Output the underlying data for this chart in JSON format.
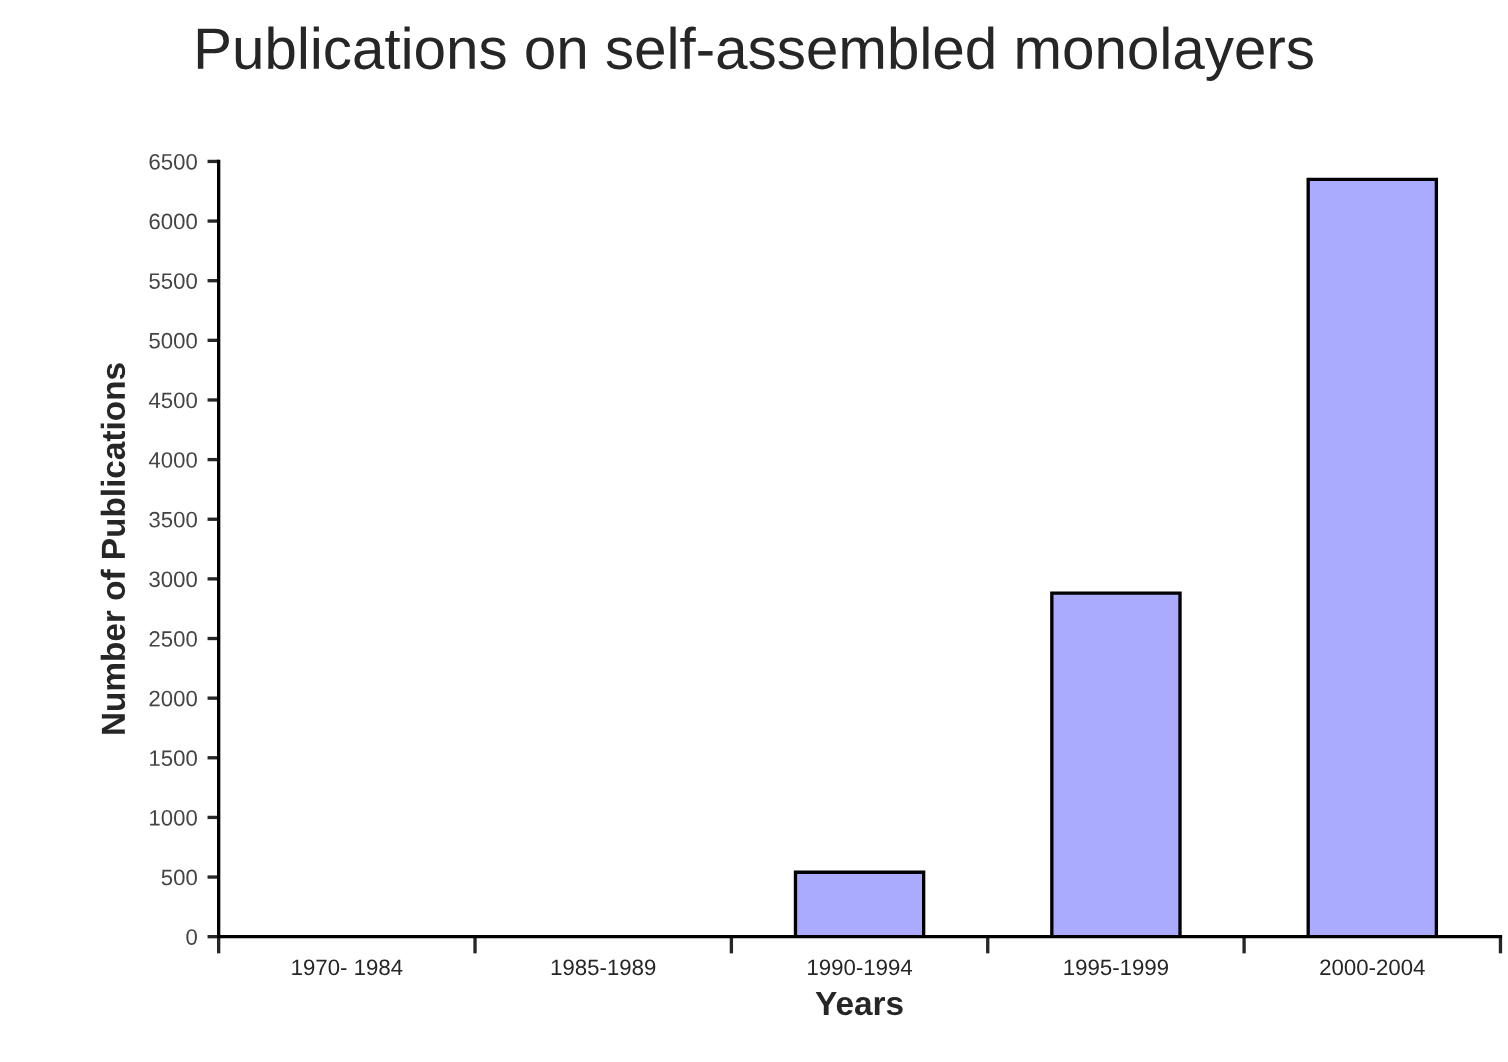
{
  "chart_data": {
    "type": "bar",
    "title": "Publications on self-assembled monolayers",
    "xlabel": "Years",
    "ylabel": "Number of Publications",
    "categories": [
      "1970- 1984",
      "1985-1989",
      "1990-1994",
      "1995-1999",
      "2000-2004"
    ],
    "values": [
      0,
      0,
      540,
      2880,
      6350
    ],
    "color": "#aaaaff",
    "ylim": [
      0,
      6500
    ],
    "yticks": [
      0,
      500,
      1000,
      1500,
      2000,
      2500,
      3000,
      3500,
      4000,
      4500,
      5000,
      5500,
      6000,
      6500
    ],
    "grid": false,
    "legend": false
  }
}
